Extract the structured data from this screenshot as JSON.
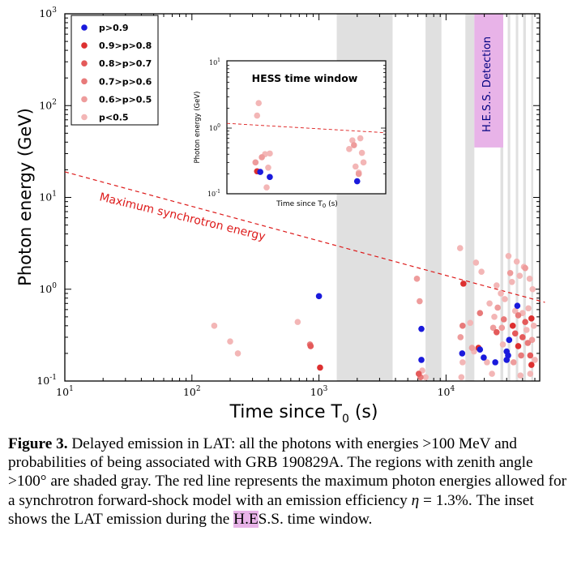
{
  "chart_data": [
    {
      "type": "scatter",
      "title": "",
      "xlabel": "Time since T",
      "xlabel_subscript": "0",
      "xlabel_unit": " (s)",
      "ylabel": "Photon energy (GeV)",
      "x_scale": "log",
      "y_scale": "log",
      "xlim": [
        10,
        60000
      ],
      "ylim": [
        0.1,
        1000
      ],
      "x_ticks": [
        {
          "base": "10",
          "exp": "1"
        },
        {
          "base": "10",
          "exp": "2"
        },
        {
          "base": "10",
          "exp": "3"
        },
        {
          "base": "10",
          "exp": "4"
        }
      ],
      "y_ticks": [
        {
          "base": "10",
          "exp": "-1"
        },
        {
          "base": "10",
          "exp": "0"
        },
        {
          "base": "10",
          "exp": "1"
        },
        {
          "base": "10",
          "exp": "2"
        },
        {
          "base": "10",
          "exp": "3"
        }
      ],
      "legend_position": "top-left",
      "legend": [
        {
          "label": "p>0.9",
          "color": "#1a1adc"
        },
        {
          "label": "0.9>p>0.8",
          "color": "#dd3030"
        },
        {
          "label": "0.8>p>0.7",
          "color": "#e45a5a"
        },
        {
          "label": "0.7>p>0.6",
          "color": "#e87a7a"
        },
        {
          "label": "0.6>p>0.5",
          "color": "#ee9c9c"
        },
        {
          "label": "p<0.5",
          "color": "#f3b6b6"
        }
      ],
      "zenith_shaded_regions_s": [
        [
          1380,
          3800
        ],
        [
          6900,
          9200
        ],
        [
          14200,
          16700
        ],
        [
          26800,
          28200
        ],
        [
          30600,
          32000
        ],
        [
          35400,
          37000
        ],
        [
          40500,
          42500
        ],
        [
          46800,
          48500
        ]
      ],
      "hess_detection_window_s": [
        16700,
        28200
      ],
      "hess_detection_ylim_gev": [
        35,
        1000
      ],
      "hess_label": "H.E.S.S. Detection",
      "synchrotron_line": {
        "label": "Maximum synchrotron energy",
        "color": "#dd1a1a",
        "points": [
          [
            10,
            19
          ],
          [
            60000,
            0.72
          ]
        ]
      },
      "series": [
        {
          "probability": "p>0.9",
          "color": "#1a1adc",
          "points": [
            [
              1000,
              0.84
            ],
            [
              6400,
              0.37
            ],
            [
              6400,
              0.17
            ],
            [
              13400,
              0.2
            ],
            [
              19800,
              0.18
            ],
            [
              24400,
              0.16
            ],
            [
              30000,
              0.17
            ],
            [
              30800,
              0.19
            ],
            [
              31400,
              0.28
            ],
            [
              36400,
              0.66
            ],
            [
              30000,
              0.21
            ],
            [
              18500,
              0.22
            ]
          ]
        },
        {
          "probability": "0.9>p>0.8",
          "color": "#dd3030",
          "points": [
            [
              1020,
              0.14
            ],
            [
              13700,
              1.15
            ],
            [
              33500,
              0.4
            ],
            [
              37000,
              0.24
            ],
            [
              47000,
              0.48
            ],
            [
              47000,
              0.15
            ],
            [
              18000,
              0.23
            ]
          ]
        },
        {
          "probability": "0.8>p>0.7",
          "color": "#e45a5a",
          "points": [
            [
              860,
              0.24
            ],
            [
              6100,
              0.12
            ],
            [
              35000,
              0.33
            ],
            [
              42000,
              0.44
            ],
            [
              25000,
              0.34
            ],
            [
              46000,
              0.19
            ],
            [
              40000,
              0.3
            ]
          ]
        },
        {
          "probability": "0.7>p>0.6",
          "color": "#e87a7a",
          "points": [
            [
              850,
              0.25
            ],
            [
              6300,
              0.11
            ],
            [
              13500,
              0.4
            ],
            [
              18500,
              0.55
            ],
            [
              28500,
              0.47
            ],
            [
              37000,
              0.52
            ],
            [
              44000,
              0.26
            ],
            [
              39000,
              0.19
            ]
          ]
        },
        {
          "probability": "0.6>p>0.5",
          "color": "#ee9c9c",
          "points": [
            [
              5900,
              1.3
            ],
            [
              6200,
              0.74
            ],
            [
              13000,
              0.3
            ],
            [
              16000,
              0.23
            ],
            [
              25500,
              0.63
            ],
            [
              27500,
              0.38
            ],
            [
              32000,
              1.5
            ],
            [
              42000,
              1.7
            ],
            [
              34000,
              0.16
            ],
            [
              47500,
              0.28
            ],
            [
              23500,
              0.38
            ]
          ]
        },
        {
          "probability": "p<0.5",
          "color": "#f3b6b6",
          "points": [
            [
              150,
              0.4
            ],
            [
              200,
              0.27
            ],
            [
              230,
              0.2
            ],
            [
              680,
              0.44
            ],
            [
              6500,
              0.13
            ],
            [
              6900,
              0.11
            ],
            [
              12900,
              2.8
            ],
            [
              13200,
              0.11
            ],
            [
              13500,
              0.16
            ],
            [
              15500,
              0.43
            ],
            [
              16600,
              0.21
            ],
            [
              17200,
              1.95
            ],
            [
              19000,
              1.55
            ],
            [
              21000,
              0.16
            ],
            [
              22000,
              0.7
            ],
            [
              24000,
              0.5
            ],
            [
              25000,
              1.1
            ],
            [
              27000,
              0.9
            ],
            [
              29000,
              0.78
            ],
            [
              31000,
              2.3
            ],
            [
              33000,
              1.2
            ],
            [
              35000,
              0.58
            ],
            [
              36000,
              2.0
            ],
            [
              38000,
              1.4
            ],
            [
              40000,
              0.55
            ],
            [
              41000,
              1.75
            ],
            [
              43000,
              0.36
            ],
            [
              44500,
              0.62
            ],
            [
              45500,
              1.3
            ],
            [
              48000,
              1.0
            ],
            [
              49000,
              0.4
            ],
            [
              50000,
              0.17
            ],
            [
              46000,
              0.12
            ],
            [
              38500,
              0.115
            ],
            [
              28000,
              0.25
            ],
            [
              23000,
              0.12
            ]
          ]
        }
      ]
    },
    {
      "type": "scatter",
      "title": "HESS time window",
      "xlabel": "Time since T",
      "xlabel_subscript": "0",
      "xlabel_unit": " (s)",
      "ylabel": "Photon energy (GeV)",
      "y_scale": "log",
      "ylim": [
        0.1,
        10
      ],
      "x_ticks": [],
      "y_ticks": [
        {
          "base": "10",
          "exp": "-1"
        },
        {
          "base": "10",
          "exp": "0"
        },
        {
          "base": "10",
          "exp": "1"
        }
      ],
      "synchrotron_line": {
        "color": "#dd1a1a",
        "points": [
          [
            0,
            1.18
          ],
          [
            1,
            0.85
          ]
        ]
      },
      "series": [
        {
          "probability": "p>0.9",
          "color": "#1a1adc",
          "points": [
            [
              0.21,
              0.215
            ],
            [
              0.27,
              0.18
            ],
            [
              0.82,
              0.155
            ]
          ]
        },
        {
          "probability": "0.9>p>0.8",
          "color": "#dd3030",
          "points": [
            [
              0.19,
              0.22
            ]
          ]
        },
        {
          "probability": "0.6>p>0.5",
          "color": "#ee9c9c",
          "points": [
            [
              0.18,
              0.3
            ],
            [
              0.22,
              0.36
            ],
            [
              0.8,
              0.55
            ],
            [
              0.83,
              0.2
            ]
          ]
        },
        {
          "probability": "p<0.5",
          "color": "#f3b6b6",
          "points": [
            [
              0.2,
              2.4
            ],
            [
              0.19,
              1.55
            ],
            [
              0.24,
              0.4
            ],
            [
              0.27,
              0.41
            ],
            [
              0.26,
              0.25
            ],
            [
              0.25,
              0.125
            ],
            [
              0.77,
              0.48
            ],
            [
              0.79,
              0.65
            ],
            [
              0.84,
              0.7
            ],
            [
              0.85,
              0.42
            ],
            [
              0.81,
              0.26
            ],
            [
              0.83,
              0.21
            ],
            [
              0.86,
              0.3
            ]
          ]
        }
      ]
    }
  ],
  "caption": {
    "label": "Figure 3.",
    "pieces": [
      {
        "text": " Delayed emission in LAT: all the photons with energies >100 MeV and probabilities of being associated with GRB 190829A. The regions with zenith angle >100° are shaded gray. The red line represents the maximum photon energies allowed for a synchrotron forward-shock model with an emission efficiency ",
        "italic": false
      },
      {
        "text": "η",
        "italic": true
      },
      {
        "text": " = 1.3%. The inset shows the LAT emission during the ",
        "italic": false
      }
    ],
    "highlight": "H.E",
    "tail": "S.S. time window."
  }
}
